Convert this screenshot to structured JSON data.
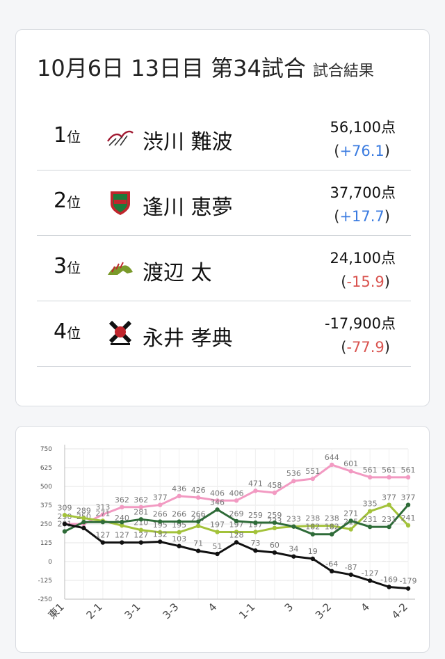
{
  "header": {
    "title": "10月6日 13日目 第34試合",
    "subtitle": "試合結果"
  },
  "results": [
    {
      "rank": "1",
      "rank_suffix": "位",
      "name": "渋川 難波",
      "team_logo": "sakura-knights-logo",
      "score": "56,100点",
      "open": "(",
      "delta": "+76.1",
      "close": ")",
      "sign": "pos"
    },
    {
      "rank": "2",
      "rank_suffix": "位",
      "name": "逢川 恵夢",
      "team_logo": "red-green-shield-logo",
      "score": "37,700点",
      "open": "(",
      "delta": "+17.7",
      "close": ")",
      "sign": "pos"
    },
    {
      "rank": "3",
      "rank_suffix": "位",
      "name": "渡辺 太",
      "team_logo": "green-dragon-logo",
      "score": "24,100点",
      "open": "(",
      "delta": "-15.9",
      "close": ")",
      "sign": "neg"
    },
    {
      "rank": "4",
      "rank_suffix": "位",
      "name": "永井 孝典",
      "team_logo": "fu-rinkazan-logo",
      "score": "-17,900点",
      "open": "(",
      "delta": "-77.9",
      "close": ")",
      "sign": "neg"
    }
  ],
  "chart_data": {
    "type": "line",
    "x": [
      "東1",
      "",
      "2-1",
      "",
      "3-1",
      "",
      "3-3",
      "",
      "4",
      "",
      "1-1",
      "",
      "3",
      "",
      "3-2",
      "",
      "4",
      "",
      "4-2"
    ],
    "ylim": [
      -250,
      750
    ],
    "yticks": [
      -250,
      -125,
      0,
      125,
      250,
      375,
      500,
      625,
      750
    ],
    "grid": true,
    "series": [
      {
        "color": "#f29ac2",
        "values": [
          250,
          250,
          313,
          362,
          362,
          377,
          436,
          426,
          406,
          406,
          471,
          458,
          536,
          551,
          644,
          601,
          561,
          561,
          561
        ],
        "labels": [
          "250",
          "250",
          "313",
          "362",
          "362",
          "377",
          "436",
          "426",
          "406",
          "406",
          "471",
          "458",
          "536",
          "551",
          "644",
          "601",
          "561",
          "561",
          "561"
        ]
      },
      {
        "color": "#a3c23a",
        "values": [
          309,
          289,
          271,
          240,
          210,
          195,
          195,
          237,
          197,
          197,
          197,
          223,
          233,
          238,
          238,
          215,
          335,
          377,
          241
        ],
        "labels": [
          "309",
          "289",
          "271",
          "240",
          "210",
          "195",
          "195",
          "237",
          "197",
          "197",
          "197",
          "223",
          "233",
          "238",
          "238",
          "215",
          "335",
          "377",
          "241"
        ]
      },
      {
        "color": "#2e6b38",
        "values": [
          201,
          263,
          263,
          263,
          281,
          266,
          266,
          266,
          346,
          269,
          259,
          259,
          233,
          182,
          182,
          271,
          231,
          231,
          377
        ],
        "labels": [
          "201",
          "",
          "",
          "",
          "281",
          "266",
          "266",
          "266",
          "346",
          "269",
          "259",
          "259",
          "",
          "182",
          "182",
          "271",
          "231",
          "231",
          "377"
        ]
      },
      {
        "color": "#111111",
        "values": [
          250,
          223,
          127,
          127,
          127,
          132,
          103,
          71,
          51,
          128,
          73,
          60,
          34,
          19,
          -64,
          -87,
          -127,
          -169,
          -179
        ],
        "labels": [
          "",
          "",
          "127",
          "127",
          "127",
          "132",
          "103",
          "71",
          "51",
          "128",
          "73",
          "60",
          "34",
          "19",
          "-64",
          "-87",
          "-127",
          "-169",
          "-179"
        ]
      }
    ]
  }
}
